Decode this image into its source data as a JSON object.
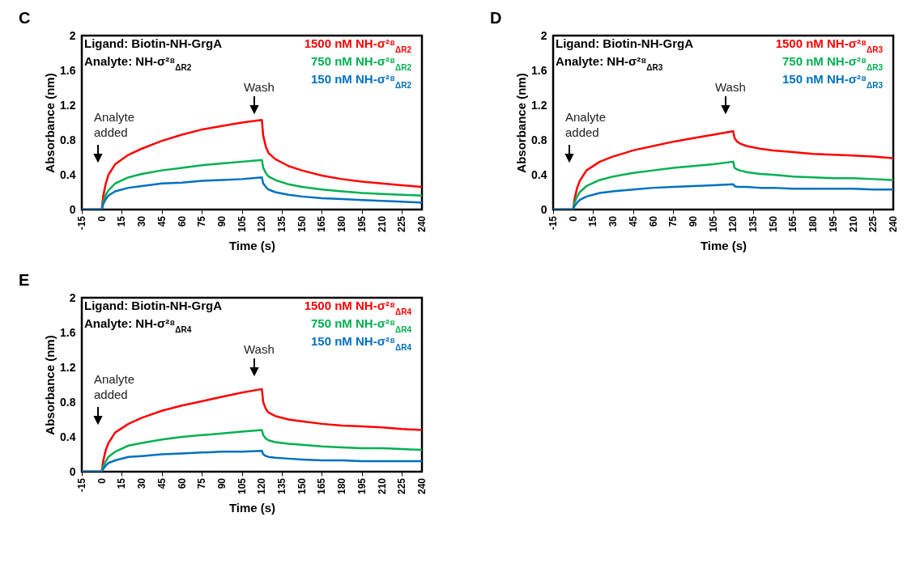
{
  "chart_data": [
    {
      "type": "line",
      "title": "C",
      "xlabel": "Time (s)",
      "ylabel": "Absorbance (nm)",
      "xlim": [
        -15,
        240
      ],
      "ylim": [
        0,
        2
      ],
      "xticks": [
        -15,
        0,
        15,
        30,
        45,
        60,
        75,
        90,
        105,
        120,
        135,
        150,
        165,
        180,
        195,
        210,
        225,
        240
      ],
      "yticks": [
        0,
        0.4,
        0.8,
        1.2,
        1.6,
        2
      ],
      "grid": false,
      "legend": "top right",
      "marker": "none",
      "line_style": "solid",
      "x": [
        -15,
        0,
        1,
        3,
        5,
        10,
        20,
        30,
        45,
        60,
        75,
        90,
        105,
        120,
        121,
        123,
        125,
        130,
        140,
        150,
        165,
        180,
        195,
        210,
        225,
        240
      ],
      "series": [
        {
          "name": "1500 nM NH-σ²⁸$_{ΔR2}$",
          "color": "#ff0000",
          "values": [
            0,
            0,
            0.15,
            0.3,
            0.4,
            0.52,
            0.63,
            0.7,
            0.79,
            0.86,
            0.92,
            0.96,
            1.0,
            1.03,
            0.85,
            0.72,
            0.65,
            0.58,
            0.5,
            0.45,
            0.39,
            0.35,
            0.32,
            0.3,
            0.28,
            0.26
          ]
        },
        {
          "name": "750 nM NH-σ²⁸$_{ΔR2}$",
          "color": "#00b050",
          "values": [
            0,
            0,
            0.08,
            0.17,
            0.22,
            0.3,
            0.37,
            0.41,
            0.45,
            0.48,
            0.51,
            0.53,
            0.55,
            0.57,
            0.48,
            0.42,
            0.38,
            0.34,
            0.29,
            0.26,
            0.23,
            0.21,
            0.19,
            0.18,
            0.17,
            0.16
          ]
        },
        {
          "name": "150 nM NH-σ²⁸$_{ΔR2}$",
          "color": "#0070c0",
          "values": [
            0,
            0,
            0.06,
            0.12,
            0.16,
            0.21,
            0.25,
            0.27,
            0.3,
            0.31,
            0.33,
            0.34,
            0.35,
            0.37,
            0.3,
            0.26,
            0.23,
            0.2,
            0.17,
            0.15,
            0.13,
            0.12,
            0.11,
            0.1,
            0.09,
            0.08
          ]
        }
      ],
      "annotations": [
        "Ligand: Biotin-NH-GrgA",
        "Analyte: NH-σ²⁸$_{ΔR2}$",
        "Analyte added",
        "Wash"
      ]
    },
    {
      "type": "line",
      "title": "D",
      "xlabel": "Time (s)",
      "ylabel": "Absorbance (nm)",
      "xlim": [
        -15,
        240
      ],
      "ylim": [
        0,
        2
      ],
      "xticks": [
        -15,
        0,
        15,
        30,
        45,
        60,
        75,
        90,
        105,
        120,
        135,
        150,
        165,
        180,
        195,
        210,
        225,
        240
      ],
      "yticks": [
        0,
        0.4,
        0.8,
        1.2,
        1.6,
        2
      ],
      "grid": false,
      "legend": "top right",
      "marker": "none",
      "line_style": "solid",
      "x": [
        -15,
        0,
        1,
        3,
        5,
        10,
        20,
        30,
        45,
        60,
        75,
        90,
        105,
        120,
        121,
        123,
        125,
        130,
        140,
        150,
        165,
        180,
        195,
        210,
        225,
        240
      ],
      "series": [
        {
          "name": "1500 nM NH-σ²⁸$_{ΔR3}$",
          "color": "#ff0000",
          "values": [
            0,
            0,
            0.12,
            0.25,
            0.33,
            0.45,
            0.55,
            0.61,
            0.68,
            0.73,
            0.78,
            0.82,
            0.86,
            0.9,
            0.82,
            0.78,
            0.76,
            0.73,
            0.7,
            0.68,
            0.66,
            0.64,
            0.63,
            0.62,
            0.61,
            0.59
          ]
        },
        {
          "name": "750 nM NH-σ²⁸$_{ΔR3}$",
          "color": "#00b050",
          "values": [
            0,
            0,
            0.08,
            0.15,
            0.2,
            0.27,
            0.34,
            0.38,
            0.42,
            0.45,
            0.48,
            0.5,
            0.52,
            0.55,
            0.48,
            0.46,
            0.45,
            0.43,
            0.41,
            0.4,
            0.38,
            0.37,
            0.36,
            0.36,
            0.35,
            0.34
          ]
        },
        {
          "name": "150 nM NH-σ²⁸$_{ΔR3}$",
          "color": "#0070c0",
          "values": [
            0,
            0,
            0.04,
            0.08,
            0.11,
            0.15,
            0.19,
            0.21,
            0.23,
            0.25,
            0.26,
            0.27,
            0.28,
            0.29,
            0.27,
            0.26,
            0.26,
            0.26,
            0.25,
            0.25,
            0.24,
            0.24,
            0.24,
            0.24,
            0.23,
            0.23
          ]
        }
      ],
      "annotations": [
        "Ligand: Biotin-NH-GrgA",
        "Analyte: NH-σ²⁸$_{ΔR3}$",
        "Analyte added",
        "Wash"
      ]
    },
    {
      "type": "line",
      "title": "E",
      "xlabel": "Time (s)",
      "ylabel": "Absorbance (nm)",
      "xlim": [
        -15,
        240
      ],
      "ylim": [
        0,
        2
      ],
      "xticks": [
        -15,
        0,
        15,
        30,
        45,
        60,
        75,
        90,
        105,
        120,
        135,
        150,
        165,
        180,
        195,
        210,
        225,
        240
      ],
      "yticks": [
        0,
        0.4,
        0.8,
        1.2,
        1.6,
        2
      ],
      "grid": false,
      "legend": "top right",
      "marker": "none",
      "line_style": "solid",
      "x": [
        -15,
        0,
        1,
        3,
        5,
        10,
        20,
        30,
        45,
        60,
        75,
        90,
        105,
        120,
        121,
        123,
        125,
        130,
        140,
        150,
        165,
        180,
        195,
        210,
        225,
        240
      ],
      "series": [
        {
          "name": "1500 nM NH-σ²⁸$_{ΔR4}$",
          "color": "#ff0000",
          "values": [
            0,
            0,
            0.12,
            0.25,
            0.33,
            0.45,
            0.55,
            0.62,
            0.7,
            0.76,
            0.81,
            0.86,
            0.91,
            0.95,
            0.8,
            0.72,
            0.68,
            0.64,
            0.6,
            0.58,
            0.55,
            0.53,
            0.52,
            0.51,
            0.49,
            0.48
          ]
        },
        {
          "name": "750 nM NH-σ²⁸$_{ΔR4}$",
          "color": "#00b050",
          "values": [
            0,
            0,
            0.06,
            0.12,
            0.17,
            0.23,
            0.3,
            0.33,
            0.37,
            0.4,
            0.42,
            0.44,
            0.46,
            0.48,
            0.42,
            0.38,
            0.36,
            0.34,
            0.32,
            0.31,
            0.29,
            0.28,
            0.27,
            0.27,
            0.26,
            0.25
          ]
        },
        {
          "name": "150 nM NH-σ²⁸$_{ΔR4}$",
          "color": "#0070c0",
          "values": [
            0,
            0,
            0.03,
            0.07,
            0.1,
            0.13,
            0.17,
            0.18,
            0.2,
            0.21,
            0.22,
            0.23,
            0.23,
            0.24,
            0.2,
            0.18,
            0.17,
            0.16,
            0.15,
            0.14,
            0.13,
            0.13,
            0.12,
            0.12,
            0.12,
            0.12
          ]
        }
      ],
      "annotations": [
        "Ligand: Biotin-NH-GrgA",
        "Analyte: NH-σ²⁸$_{ΔR4}$",
        "Analyte added",
        "Wash"
      ]
    }
  ]
}
